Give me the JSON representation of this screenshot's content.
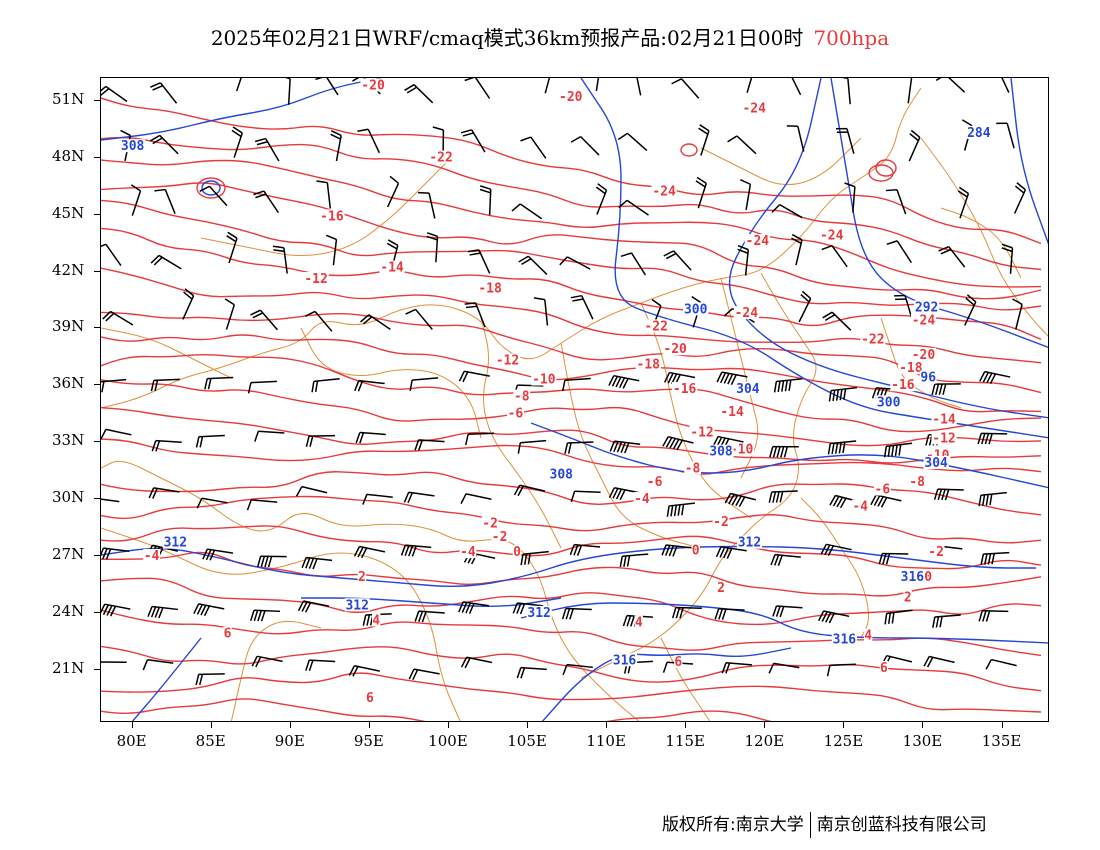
{
  "title": {
    "main": "2025年02月21日WRF/cmaq模式36km预报产品:02月21日00时",
    "level": "700hpa"
  },
  "axes": {
    "lat_labels": [
      "51N",
      "48N",
      "45N",
      "42N",
      "39N",
      "36N",
      "33N",
      "30N",
      "27N",
      "24N",
      "21N"
    ],
    "lat_values": [
      51,
      48,
      45,
      42,
      39,
      36,
      33,
      30,
      27,
      24,
      21
    ],
    "lon_labels": [
      "80E",
      "85E",
      "90E",
      "95E",
      "100E",
      "105E",
      "110E",
      "115E",
      "120E",
      "125E",
      "130E",
      "135E"
    ],
    "lon_values": [
      80,
      85,
      90,
      95,
      100,
      105,
      110,
      115,
      120,
      125,
      130,
      135
    ],
    "lon_range": [
      78,
      138
    ],
    "lat_range": [
      18.2,
      52.2
    ]
  },
  "colors": {
    "temperature": "#e8393d",
    "geopotential": "#2546d8",
    "borders": "#e0913a",
    "wind": "#000000"
  },
  "temperature_labels": [
    {
      "text": "-20",
      "lon": 95.2,
      "lat": 51.7
    },
    {
      "text": "-20",
      "lon": 107.7,
      "lat": 51.1
    },
    {
      "text": "-24",
      "lon": 119.3,
      "lat": 50.5
    },
    {
      "text": "-22",
      "lon": 99.5,
      "lat": 47.9
    },
    {
      "text": "-24",
      "lon": 113.6,
      "lat": 46.1
    },
    {
      "text": "-16",
      "lon": 92.6,
      "lat": 44.8
    },
    {
      "text": "-24",
      "lon": 119.5,
      "lat": 43.5
    },
    {
      "text": "-24",
      "lon": 124.2,
      "lat": 43.8
    },
    {
      "text": "-14",
      "lon": 96.4,
      "lat": 42.1
    },
    {
      "text": "-12",
      "lon": 91.6,
      "lat": 41.5
    },
    {
      "text": "-18",
      "lon": 102.6,
      "lat": 41.0
    },
    {
      "text": "-24",
      "lon": 118.8,
      "lat": 39.7
    },
    {
      "text": "-24",
      "lon": 130.0,
      "lat": 39.3
    },
    {
      "text": "-22",
      "lon": 113.1,
      "lat": 39.0
    },
    {
      "text": "-22",
      "lon": 126.8,
      "lat": 38.3
    },
    {
      "text": "-20",
      "lon": 114.3,
      "lat": 37.8
    },
    {
      "text": "-20",
      "lon": 130.0,
      "lat": 37.5
    },
    {
      "text": "-18",
      "lon": 112.6,
      "lat": 37.0
    },
    {
      "text": "-18",
      "lon": 129.2,
      "lat": 36.8
    },
    {
      "text": "-12",
      "lon": 103.7,
      "lat": 37.2
    },
    {
      "text": "-10",
      "lon": 106.0,
      "lat": 36.2
    },
    {
      "text": "-16",
      "lon": 128.7,
      "lat": 35.9
    },
    {
      "text": "-8",
      "lon": 104.6,
      "lat": 35.3
    },
    {
      "text": "-16",
      "lon": 114.9,
      "lat": 35.7
    },
    {
      "text": "-6",
      "lon": 104.2,
      "lat": 34.4
    },
    {
      "text": "-14",
      "lon": 117.9,
      "lat": 34.5
    },
    {
      "text": "-14",
      "lon": 131.3,
      "lat": 34.1
    },
    {
      "text": "-12",
      "lon": 116.0,
      "lat": 33.4
    },
    {
      "text": "-12",
      "lon": 131.3,
      "lat": 33.1
    },
    {
      "text": "-10",
      "lon": 118.5,
      "lat": 32.5
    },
    {
      "text": "-10",
      "lon": 130.9,
      "lat": 32.2
    },
    {
      "text": "-8",
      "lon": 115.4,
      "lat": 31.5
    },
    {
      "text": "-8",
      "lon": 129.6,
      "lat": 30.8
    },
    {
      "text": "-6",
      "lon": 113.0,
      "lat": 30.8
    },
    {
      "text": "-6",
      "lon": 127.4,
      "lat": 30.4
    },
    {
      "text": "-4",
      "lon": 112.2,
      "lat": 29.9
    },
    {
      "text": "-4",
      "lon": 126.0,
      "lat": 29.5
    },
    {
      "text": "-2",
      "lon": 102.6,
      "lat": 28.6
    },
    {
      "text": "-2",
      "lon": 103.2,
      "lat": 27.9
    },
    {
      "text": "-2",
      "lon": 117.2,
      "lat": 28.7
    },
    {
      "text": "-2",
      "lon": 130.8,
      "lat": 27.1
    },
    {
      "text": "-4",
      "lon": 101.2,
      "lat": 27.1
    },
    {
      "text": "-4",
      "lon": 81.2,
      "lat": 26.9
    },
    {
      "text": "0",
      "lon": 104.3,
      "lat": 27.1
    },
    {
      "text": "0",
      "lon": 115.6,
      "lat": 27.2
    },
    {
      "text": "0",
      "lon": 130.3,
      "lat": 25.8
    },
    {
      "text": "2",
      "lon": 94.5,
      "lat": 25.8
    },
    {
      "text": "2",
      "lon": 117.2,
      "lat": 25.2
    },
    {
      "text": "2",
      "lon": 129.0,
      "lat": 24.7
    },
    {
      "text": "4",
      "lon": 95.4,
      "lat": 23.5
    },
    {
      "text": "4",
      "lon": 112.0,
      "lat": 23.4
    },
    {
      "text": "4",
      "lon": 126.5,
      "lat": 22.7
    },
    {
      "text": "6",
      "lon": 86.0,
      "lat": 22.8
    },
    {
      "text": "6",
      "lon": 114.5,
      "lat": 21.3
    },
    {
      "text": "6",
      "lon": 127.5,
      "lat": 21.0
    },
    {
      "text": "6",
      "lon": 95.0,
      "lat": 19.4
    }
  ],
  "geopotential_labels": [
    {
      "text": "308",
      "lon": 80.0,
      "lat": 48.5
    },
    {
      "text": "284",
      "lon": 133.5,
      "lat": 49.2
    },
    {
      "text": "300",
      "lon": 115.6,
      "lat": 39.9
    },
    {
      "text": "292",
      "lon": 130.2,
      "lat": 40.0
    },
    {
      "text": "304",
      "lon": 118.9,
      "lat": 35.7
    },
    {
      "text": "300",
      "lon": 127.8,
      "lat": 35.0
    },
    {
      "text": "96",
      "lon": 130.3,
      "lat": 36.3
    },
    {
      "text": "308",
      "lon": 107.1,
      "lat": 31.2
    },
    {
      "text": "308",
      "lon": 117.2,
      "lat": 32.4
    },
    {
      "text": "304",
      "lon": 130.8,
      "lat": 31.8
    },
    {
      "text": "312",
      "lon": 82.7,
      "lat": 27.6
    },
    {
      "text": "312",
      "lon": 119.0,
      "lat": 27.6
    },
    {
      "text": "312",
      "lon": 94.2,
      "lat": 24.3
    },
    {
      "text": "312",
      "lon": 105.7,
      "lat": 23.9
    },
    {
      "text": "316",
      "lon": 129.3,
      "lat": 25.8
    },
    {
      "text": "316",
      "lon": 125.0,
      "lat": 22.5
    },
    {
      "text": "316",
      "lon": 111.1,
      "lat": 21.4
    }
  ],
  "copyright": {
    "left": "版权所有:南京大学",
    "right": "南京创蓝科技有限公司"
  }
}
